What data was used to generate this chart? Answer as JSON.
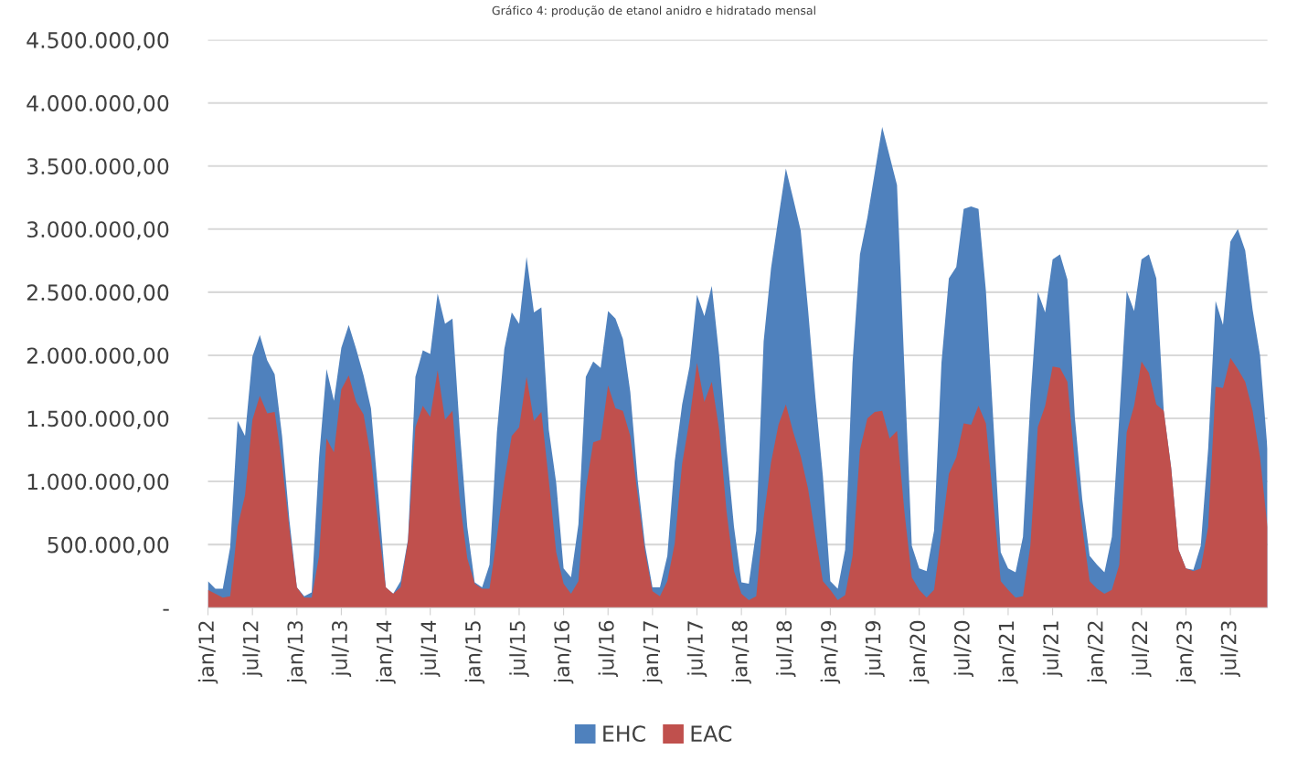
{
  "chart_data": {
    "type": "area",
    "title": "Gráfico 4: produção de etanol anidro e hidratado mensal",
    "categories": [
      "jan/12",
      null,
      null,
      null,
      null,
      null,
      "jul/12",
      null,
      null,
      null,
      null,
      null,
      "jan/13",
      null,
      null,
      null,
      null,
      null,
      "jul/13",
      null,
      null,
      null,
      null,
      null,
      "jan/14",
      null,
      null,
      null,
      null,
      null,
      "jul/14",
      null,
      null,
      null,
      null,
      null,
      "jan/15",
      null,
      null,
      null,
      null,
      null,
      "jul/15",
      null,
      null,
      null,
      null,
      null,
      "jan/16",
      null,
      null,
      null,
      null,
      null,
      "jul/16",
      null,
      null,
      null,
      null,
      null,
      "jan/17",
      null,
      null,
      null,
      null,
      null,
      "jul/17",
      null,
      null,
      null,
      null,
      null,
      "jan/18",
      null,
      null,
      null,
      null,
      null,
      "jul/18",
      null,
      null,
      null,
      null,
      null,
      "jan/19",
      null,
      null,
      null,
      null,
      null,
      "jul/19",
      null,
      null,
      null,
      null,
      null,
      "jan/20",
      null,
      null,
      null,
      null,
      null,
      "jul/20",
      null,
      null,
      null,
      null,
      null,
      "jan/21",
      null,
      null,
      null,
      null,
      null,
      "jul/21",
      null,
      null,
      null,
      null,
      null,
      "jan/22",
      null,
      null,
      null,
      null,
      null,
      "jul/22",
      null,
      null,
      null,
      null,
      null,
      "jan/23",
      null,
      null,
      null,
      null,
      null,
      "jul/23",
      null,
      null,
      null,
      null,
      null
    ],
    "series": [
      {
        "name": "EHC",
        "color": "#4f81bd",
        "values": [
          210000,
          150000,
          150000,
          480000,
          1480000,
          1360000,
          1990000,
          2160000,
          1960000,
          1850000,
          1360000,
          690000,
          160000,
          90000,
          120000,
          1190000,
          1890000,
          1640000,
          2060000,
          2240000,
          2050000,
          1840000,
          1580000,
          890000,
          160000,
          110000,
          210000,
          540000,
          1830000,
          2040000,
          2010000,
          2490000,
          2250000,
          2290000,
          1390000,
          640000,
          200000,
          160000,
          340000,
          1390000,
          2050000,
          2340000,
          2250000,
          2780000,
          2340000,
          2380000,
          1410000,
          990000,
          310000,
          240000,
          660000,
          1830000,
          1950000,
          1900000,
          2350000,
          2290000,
          2130000,
          1710000,
          1010000,
          490000,
          160000,
          160000,
          410000,
          1160000,
          1610000,
          1910000,
          2480000,
          2310000,
          2550000,
          2000000,
          1260000,
          640000,
          200000,
          190000,
          610000,
          2110000,
          2690000,
          3090000,
          3480000,
          3240000,
          2990000,
          2360000,
          1660000,
          1040000,
          210000,
          150000,
          460000,
          1940000,
          2800000,
          3090000,
          3450000,
          3810000,
          3580000,
          3350000,
          1890000,
          490000,
          310000,
          290000,
          610000,
          1940000,
          2610000,
          2700000,
          3160000,
          3180000,
          3160000,
          2510000,
          1480000,
          440000,
          310000,
          280000,
          560000,
          1640000,
          2500000,
          2340000,
          2760000,
          2800000,
          2600000,
          1510000,
          860000,
          410000,
          340000,
          280000,
          560000,
          1510000,
          2510000,
          2350000,
          2760000,
          2800000,
          2610000,
          1560000,
          1110000,
          460000,
          310000,
          300000,
          490000,
          1260000,
          2430000,
          2240000,
          2900000,
          3000000,
          2830000,
          2360000,
          2000000,
          1260000
        ]
      },
      {
        "name": "EAC",
        "color": "#c0504d",
        "values": [
          140000,
          110000,
          80000,
          90000,
          640000,
          890000,
          1490000,
          1680000,
          1540000,
          1550000,
          1140000,
          620000,
          160000,
          80000,
          80000,
          410000,
          1340000,
          1230000,
          1730000,
          1840000,
          1630000,
          1530000,
          1190000,
          640000,
          160000,
          110000,
          160000,
          530000,
          1430000,
          1600000,
          1510000,
          1880000,
          1490000,
          1560000,
          840000,
          390000,
          190000,
          150000,
          150000,
          560000,
          1010000,
          1360000,
          1430000,
          1830000,
          1480000,
          1550000,
          1010000,
          440000,
          190000,
          110000,
          210000,
          940000,
          1310000,
          1330000,
          1760000,
          1580000,
          1560000,
          1360000,
          890000,
          440000,
          130000,
          90000,
          210000,
          510000,
          1140000,
          1490000,
          1940000,
          1630000,
          1790000,
          1410000,
          760000,
          290000,
          110000,
          60000,
          90000,
          710000,
          1150000,
          1450000,
          1610000,
          1390000,
          1200000,
          940000,
          560000,
          210000,
          140000,
          60000,
          100000,
          410000,
          1250000,
          1500000,
          1550000,
          1560000,
          1340000,
          1400000,
          760000,
          240000,
          140000,
          80000,
          140000,
          590000,
          1060000,
          1190000,
          1460000,
          1450000,
          1600000,
          1460000,
          840000,
          210000,
          140000,
          80000,
          90000,
          490000,
          1430000,
          1600000,
          1910000,
          1900000,
          1790000,
          1140000,
          640000,
          210000,
          150000,
          110000,
          140000,
          340000,
          1390000,
          1600000,
          1950000,
          1860000,
          1610000,
          1560000,
          1110000,
          460000,
          310000,
          290000,
          310000,
          640000,
          1750000,
          1740000,
          1980000,
          1890000,
          1790000,
          1560000,
          1190000,
          640000
        ]
      }
    ],
    "ylim": [
      0,
      4500000
    ],
    "yticks": [
      {
        "value": 0,
        "label": "-"
      },
      {
        "value": 500000,
        "label": "500.000,00"
      },
      {
        "value": 1000000,
        "label": "1.000.000,00"
      },
      {
        "value": 1500000,
        "label": "1.500.000,00"
      },
      {
        "value": 2000000,
        "label": "2.000.000,00"
      },
      {
        "value": 2500000,
        "label": "2.500.000,00"
      },
      {
        "value": 3000000,
        "label": "3.000.000,00"
      },
      {
        "value": 3500000,
        "label": "3.500.000,00"
      },
      {
        "value": 4000000,
        "label": "4.000.000,00"
      },
      {
        "value": 4500000,
        "label": "4.500.000,00"
      }
    ],
    "grid": "y",
    "legend": "bottom"
  }
}
